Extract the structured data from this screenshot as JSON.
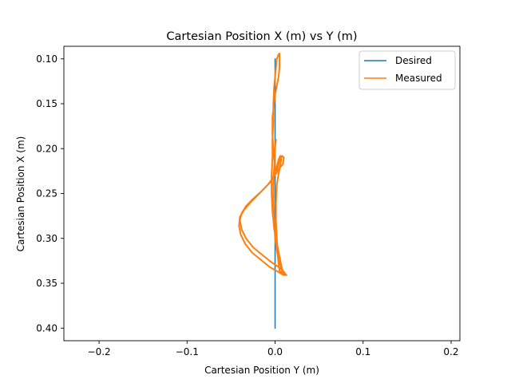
{
  "chart_data": {
    "type": "line",
    "title": "Cartesian Position X (m) vs Y (m)",
    "xlabel": "Cartesian Position Y (m)",
    "ylabel": "Cartesian Position X (m)",
    "xlim": [
      -0.24,
      0.21
    ],
    "ylim": [
      0.414,
      0.086
    ],
    "y_inverted": true,
    "grid": false,
    "legend_position": "top-right",
    "xticks": [
      -0.2,
      -0.1,
      0.0,
      0.1,
      0.2
    ],
    "xtick_labels": [
      "−0.2",
      "−0.1",
      "0.0",
      "0.1",
      "0.2"
    ],
    "yticks": [
      0.1,
      0.15,
      0.2,
      0.25,
      0.3,
      0.35,
      0.4
    ],
    "ytick_labels": [
      "0.10",
      "0.15",
      "0.20",
      "0.25",
      "0.30",
      "0.35",
      "0.40"
    ],
    "series": [
      {
        "name": "Desired",
        "color": "#1f77b4",
        "x": [
          0.0,
          0.0
        ],
        "y": [
          0.4,
          0.1
        ]
      },
      {
        "name": "Measured",
        "color": "#ff7f0e",
        "x": [
          0.011,
          0.005,
          0.003,
          0.002,
          0.001,
          0.001,
          0.002,
          0.004,
          0.006,
          0.007,
          0.006,
          0.004,
          0.002,
          -0.001,
          -0.003,
          -0.006,
          -0.012,
          -0.02,
          -0.028,
          -0.035,
          -0.04,
          -0.041,
          -0.039,
          -0.034,
          -0.026,
          -0.016,
          -0.006,
          0.003,
          0.008,
          0.01,
          0.007,
          0.003,
          -0.001,
          -0.003,
          -0.004,
          -0.004,
          -0.003,
          -0.003,
          -0.002,
          -0.002,
          -0.001,
          0.0,
          0.001,
          0.002,
          0.004,
          0.005,
          0.005,
          0.005,
          0.004,
          0.0,
          -0.003,
          -0.003,
          -0.002,
          -0.001,
          0.0,
          0.002,
          0.005,
          0.008,
          0.01,
          0.009,
          0.005,
          0.001,
          -0.002,
          -0.008,
          -0.016,
          -0.025,
          -0.033,
          -0.038,
          -0.04,
          -0.038,
          -0.033,
          -0.025,
          -0.015,
          -0.005,
          0.004,
          0.009,
          0.012,
          0.013,
          0.008,
          0.003,
          0.0,
          -0.001,
          -0.002,
          -0.002,
          -0.001,
          0.0,
          0.001
        ],
        "y": [
          0.341,
          0.336,
          0.32,
          0.3,
          0.28,
          0.26,
          0.24,
          0.228,
          0.218,
          0.212,
          0.208,
          0.212,
          0.22,
          0.228,
          0.234,
          0.238,
          0.244,
          0.252,
          0.26,
          0.268,
          0.276,
          0.286,
          0.296,
          0.306,
          0.316,
          0.324,
          0.332,
          0.337,
          0.34,
          0.341,
          0.33,
          0.31,
          0.29,
          0.27,
          0.25,
          0.23,
          0.21,
          0.19,
          0.17,
          0.15,
          0.13,
          0.12,
          0.11,
          0.1,
          0.095,
          0.094,
          0.1,
          0.11,
          0.12,
          0.14,
          0.165,
          0.185,
          0.2,
          0.212,
          0.22,
          0.225,
          0.214,
          0.208,
          0.21,
          0.217,
          0.222,
          0.228,
          0.232,
          0.24,
          0.248,
          0.256,
          0.264,
          0.272,
          0.28,
          0.29,
          0.3,
          0.31,
          0.318,
          0.326,
          0.332,
          0.336,
          0.34,
          0.341,
          0.336,
          0.32,
          0.3,
          0.28,
          0.26,
          0.24,
          0.22,
          0.2,
          0.19
        ]
      }
    ]
  }
}
